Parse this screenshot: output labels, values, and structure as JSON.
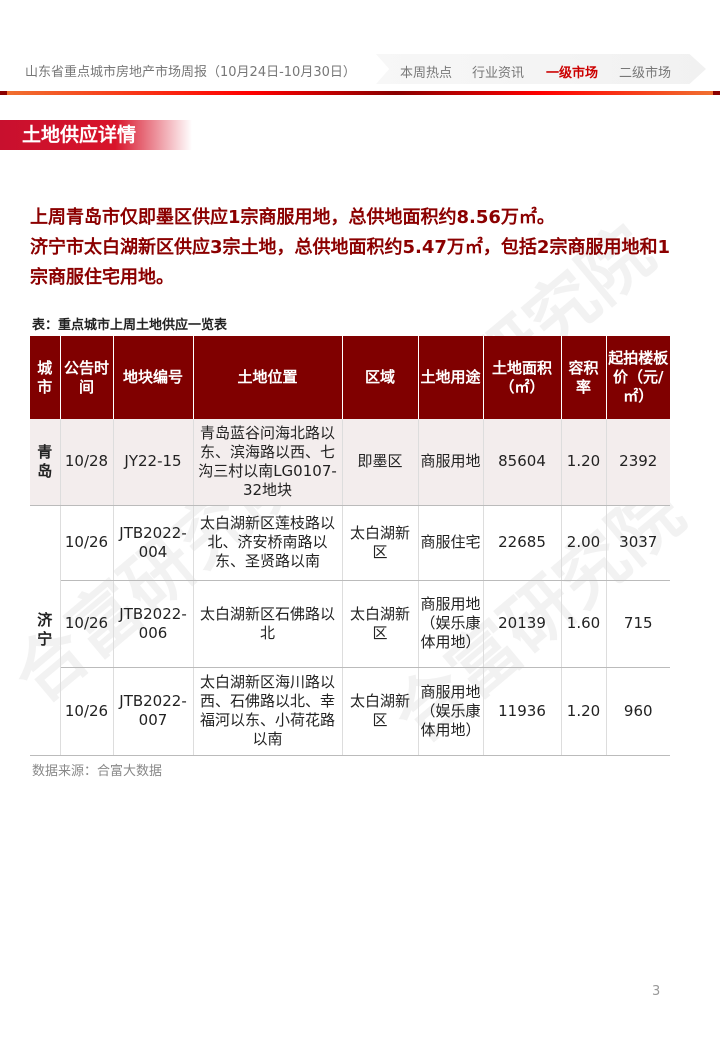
{
  "header": {
    "title": "山东省重点城市房地产市场周报（10月24日-10月30日）",
    "nav": [
      {
        "label": "本周热点",
        "active": false
      },
      {
        "label": "行业资讯",
        "active": false
      },
      {
        "label": "一级市场",
        "active": true
      },
      {
        "label": "二级市场",
        "active": false
      }
    ]
  },
  "section_title": "土地供应详情",
  "summary": [
    "上周青岛市仅即墨区供应1宗商服用地，总供地面积约8.56万㎡。",
    "济宁市太白湖新区供应3宗土地，总供地面积约5.47万㎡，包括2宗商服用地和1宗商服住宅用地。"
  ],
  "table": {
    "caption": "表：重点城市上周土地供应一览表",
    "headers": [
      "城市",
      "公告时间",
      "地块编号",
      "土地位置",
      "区域",
      "土地用途",
      "土地面积（㎡）",
      "容积率",
      "起拍楼板价（元/㎡）"
    ],
    "groups": [
      {
        "city": "青岛",
        "rows": [
          [
            "10/28",
            "JY22-15",
            "青岛蓝谷问海北路以东、滨海路以西、七沟三村以南LG0107-32地块",
            "即墨区",
            "商服用地",
            "85604",
            "1.20",
            "2392"
          ]
        ]
      },
      {
        "city": "济宁",
        "rows": [
          [
            "10/26",
            "JTB2022-004",
            "太白湖新区莲枝路以北、济安桥南路以东、圣贤路以南",
            "太白湖新区",
            "商服住宅",
            "22685",
            "2.00",
            "3037"
          ],
          [
            "10/26",
            "JTB2022-006",
            "太白湖新区石佛路以北",
            "太白湖新区",
            "商服用地（娱乐康体用地）",
            "20139",
            "1.60",
            "715"
          ],
          [
            "10/26",
            "JTB2022-007",
            "太白湖新区海川路以西、石佛路以北、幸福河以东、小荷花路以南",
            "太白湖新区",
            "商服用地（娱乐康体用地）",
            "11936",
            "1.20",
            "960"
          ]
        ]
      }
    ]
  },
  "source": "数据来源：合富大数据",
  "page_number": "3",
  "watermark": "合富研究院",
  "colors": {
    "header_bg": "#800000",
    "accent": "#c8102e",
    "summary_text": "#8b0000"
  }
}
